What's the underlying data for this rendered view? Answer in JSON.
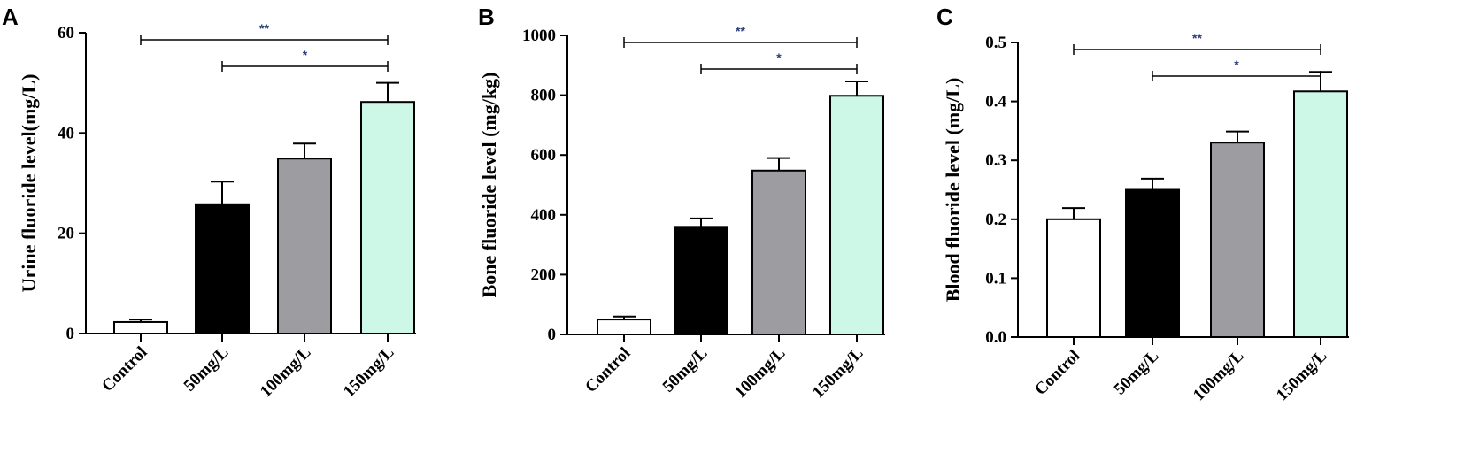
{
  "categories": [
    "Control",
    "50mg/L",
    "100mg/L",
    "150mg/L"
  ],
  "bar_colors": [
    "#ffffff",
    "#000000",
    "#9d9ca1",
    "#cdf7e6"
  ],
  "chart_data": [
    {
      "type": "bar",
      "panel": "A",
      "ylabel": "Urine fluoride level(mg/L)",
      "ylim": [
        0,
        60
      ],
      "yticks": [
        0,
        20,
        40,
        60
      ],
      "categories": [
        "Control",
        "50mg/L",
        "100mg/L",
        "150mg/L"
      ],
      "values": [
        2.3,
        25.8,
        34.9,
        46.2
      ],
      "errors": [
        0.5,
        4.5,
        3.0,
        3.8
      ],
      "significance": [
        {
          "from": 0,
          "to": 3,
          "label": "**"
        },
        {
          "from": 1,
          "to": 3,
          "label": "*"
        }
      ]
    },
    {
      "type": "bar",
      "panel": "B",
      "ylabel": "Bone fluoride level (mg/kg)",
      "ylim": [
        0,
        1000
      ],
      "yticks": [
        0,
        200,
        400,
        600,
        800,
        1000
      ],
      "categories": [
        "Control",
        "50mg/L",
        "100mg/L",
        "150mg/L"
      ],
      "values": [
        50,
        360,
        548,
        798
      ],
      "errors": [
        10,
        28,
        42,
        48
      ],
      "significance": [
        {
          "from": 0,
          "to": 3,
          "label": "**"
        },
        {
          "from": 1,
          "to": 3,
          "label": "*"
        }
      ]
    },
    {
      "type": "bar",
      "panel": "C",
      "ylabel": "Blood fluoride level (mg/L)",
      "ylim": [
        0,
        0.5
      ],
      "yticks": [
        0.0,
        0.1,
        0.2,
        0.3,
        0.4,
        0.5
      ],
      "ytick_labels": [
        "0.0",
        "0.1",
        "0.2",
        "0.3",
        "0.4",
        "0.5"
      ],
      "categories": [
        "Control",
        "50mg/L",
        "100mg/L",
        "150mg/L"
      ],
      "values": [
        0.2,
        0.25,
        0.33,
        0.417
      ],
      "errors": [
        0.019,
        0.019,
        0.019,
        0.033
      ],
      "significance": [
        {
          "from": 0,
          "to": 3,
          "label": "**"
        },
        {
          "from": 1,
          "to": 3,
          "label": "*"
        }
      ]
    }
  ]
}
